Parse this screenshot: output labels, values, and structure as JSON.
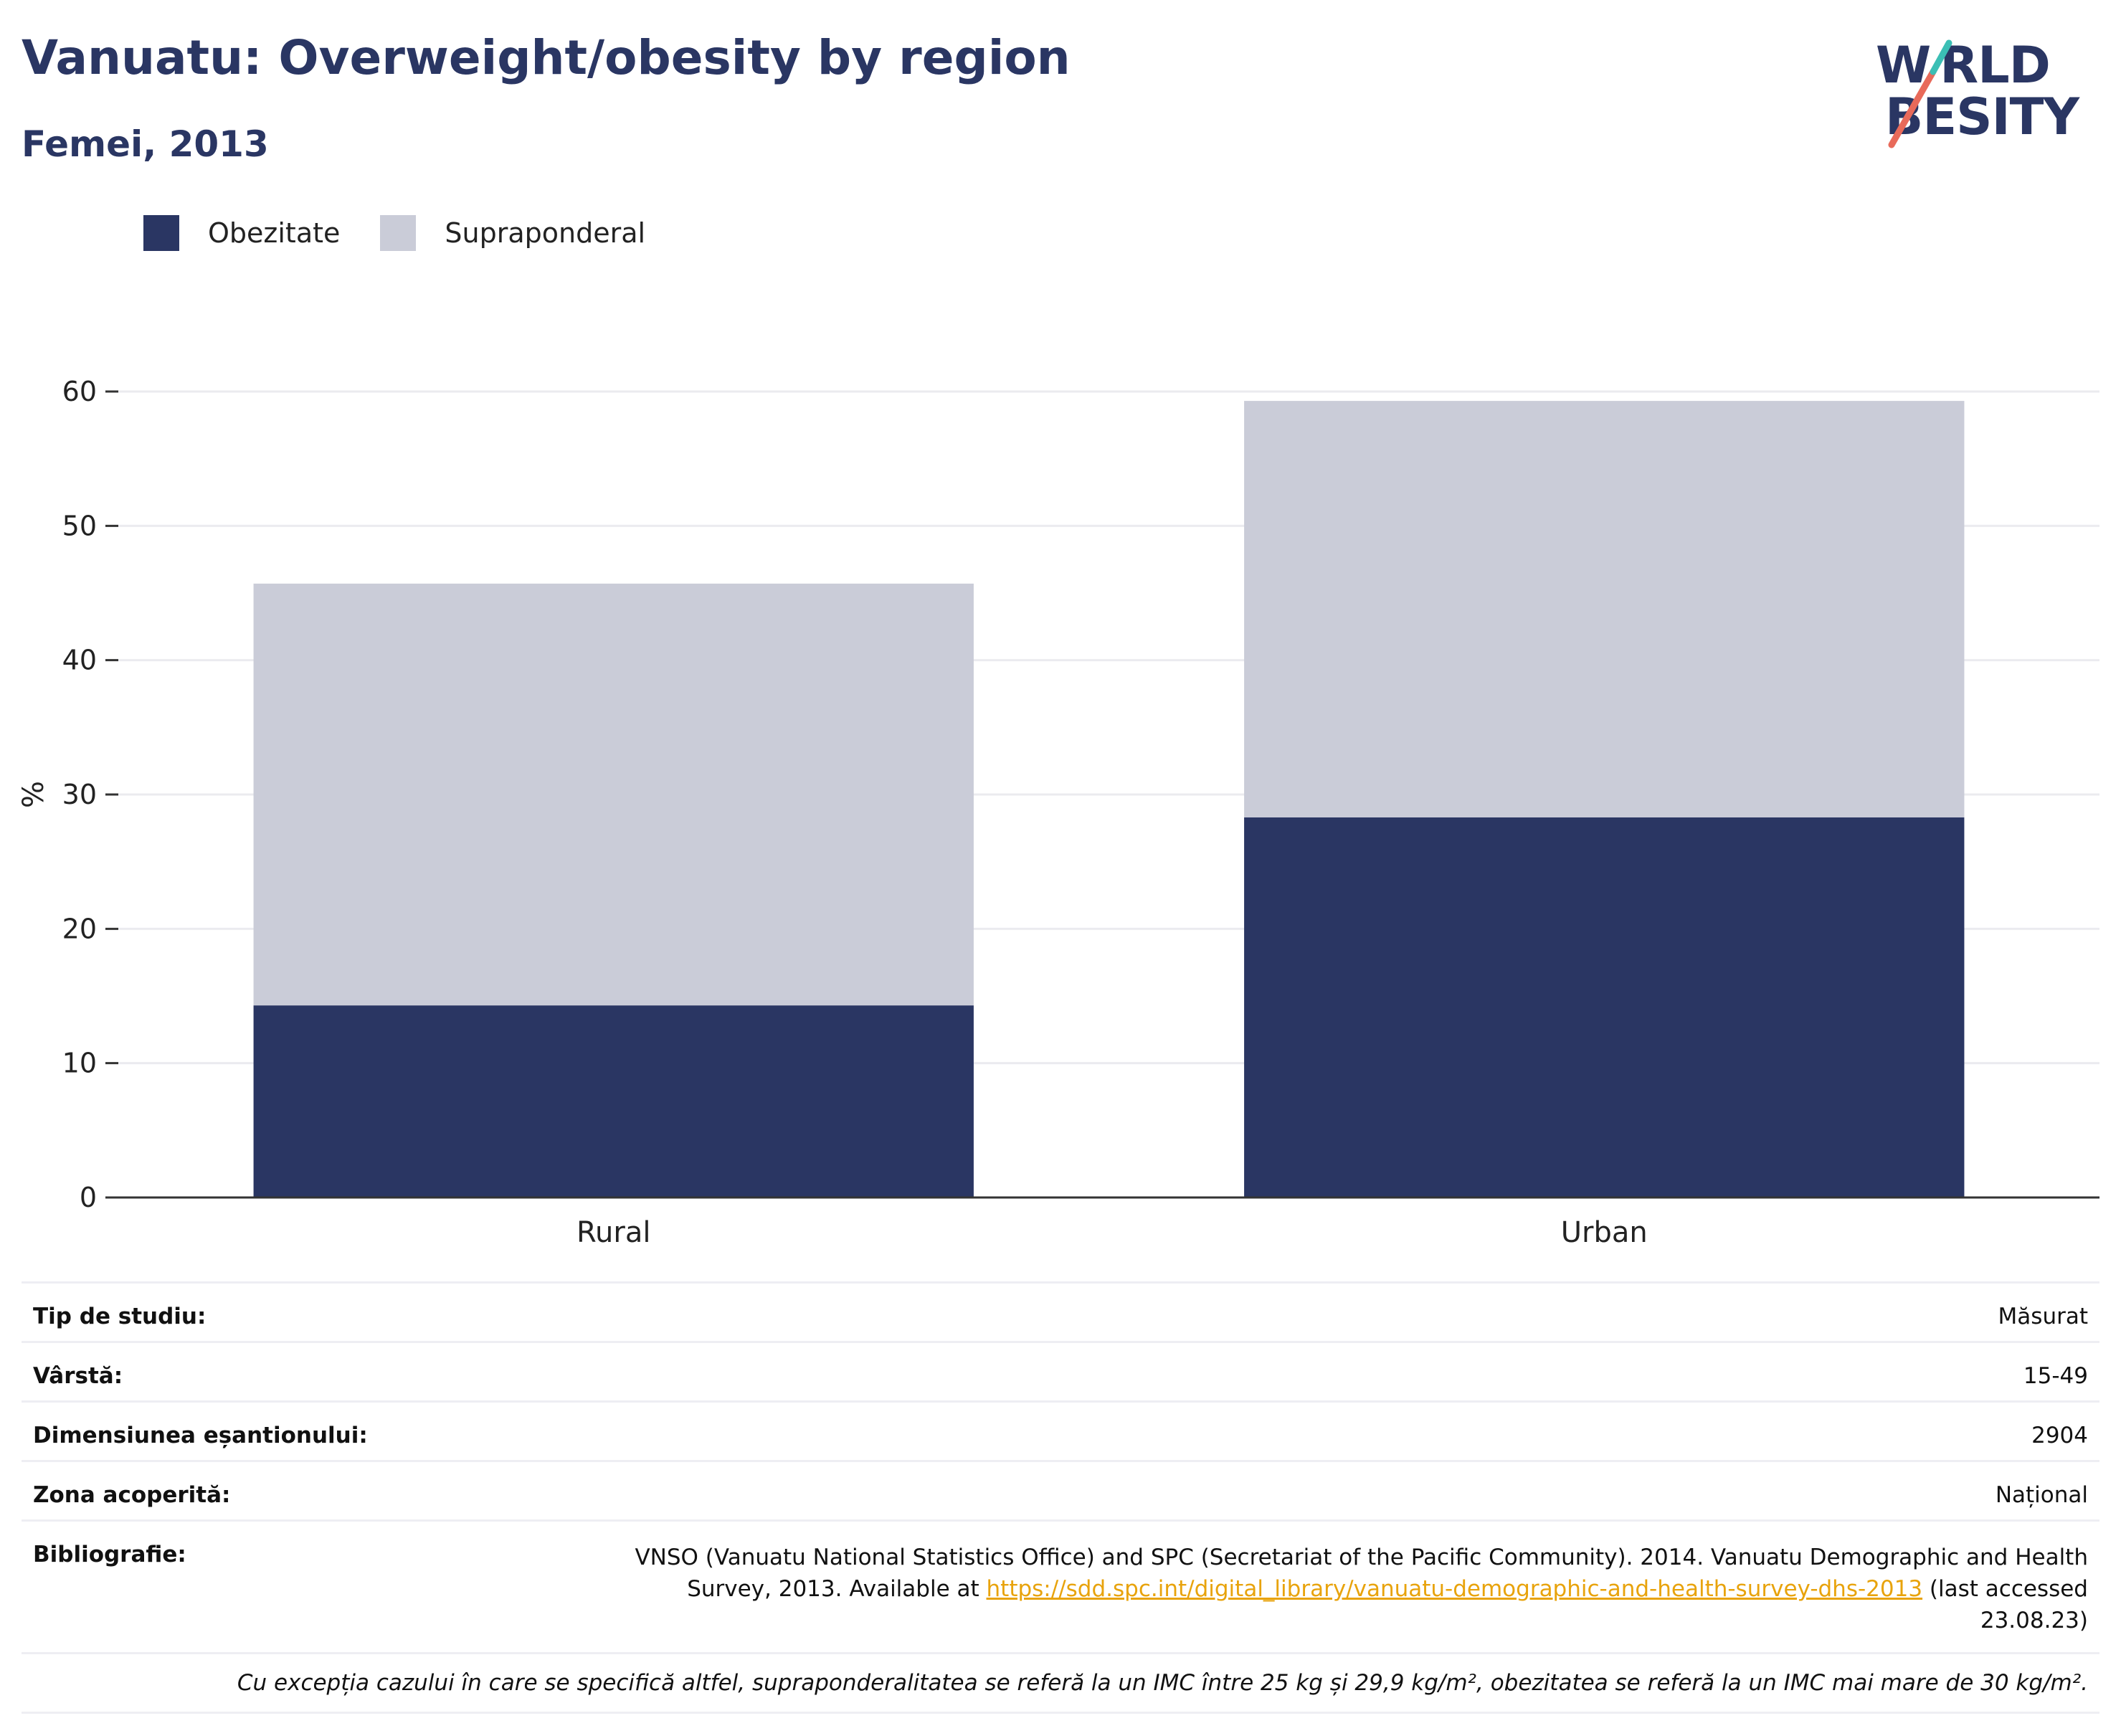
{
  "title": "Vanuatu: Overweight/obesity by region",
  "subtitle": "Femei, 2013",
  "logo": {
    "line1": "W RLD",
    "line2": " BESITY"
  },
  "colors": {
    "obesity": "#2a3663",
    "overweight": "#caccd8",
    "accent_red": "#e86a5a",
    "accent_teal": "#3bbfb5"
  },
  "chart_data": {
    "type": "bar",
    "stacked": true,
    "categories": [
      "Rural",
      "Urban"
    ],
    "series": [
      {
        "name": "Obezitate",
        "values": [
          14.3,
          28.3
        ]
      },
      {
        "name": "Supraponderal",
        "values": [
          31.4,
          31.0
        ]
      }
    ],
    "ylabel": "%",
    "ylim": [
      0,
      60
    ],
    "yticks": [
      0,
      10,
      20,
      30,
      40,
      50,
      60
    ],
    "grid": true,
    "legend": "top-left"
  },
  "meta": {
    "study_type": {
      "label": "Tip de studiu:",
      "value": "Măsurat"
    },
    "age": {
      "label": "Vârstă:",
      "value": "15-49"
    },
    "sample": {
      "label": "Dimensiunea eșantionului:",
      "value": "2904"
    },
    "area": {
      "label": "Zona acoperită:",
      "value": "Național"
    },
    "bibliography": {
      "label": "Bibliografie:",
      "pre": "VNSO (Vanuatu National Statistics Office) and SPC (Secretariat of the Pacific Community). 2014. Vanuatu Demographic and Health Survey, 2013. Available at ",
      "link": "https://sdd.spc.int/digital_library/vanuatu-demographic-and-health-survey-dhs-2013",
      "post": " (last accessed 23.08.23)"
    },
    "footnote": "Cu excepția cazului în care se specifică altfel, supraponderalitatea se referă la un IMC între 25 kg și 29,9 kg/m², obezitatea se referă la un IMC mai mare de 30 kg/m²."
  }
}
